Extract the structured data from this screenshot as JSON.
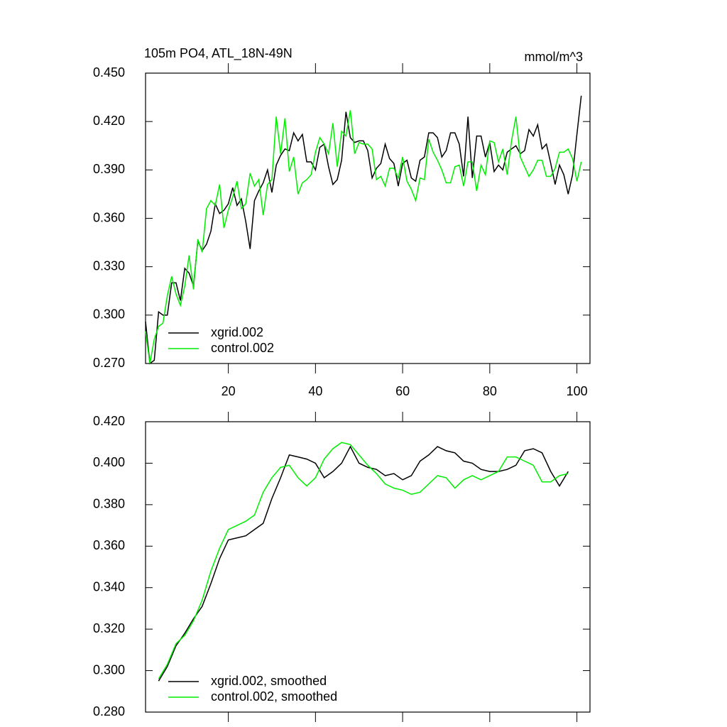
{
  "chart_data": [
    {
      "type": "line",
      "left_title": "105m PO4, ATL_18N-49N",
      "right_title": "mmol/m^3",
      "x": [
        1,
        2,
        3,
        4,
        5,
        6,
        7,
        8,
        9,
        10,
        11,
        12,
        13,
        14,
        15,
        16,
        17,
        18,
        19,
        20,
        21,
        22,
        23,
        24,
        25,
        26,
        27,
        28,
        29,
        30,
        31,
        32,
        33,
        34,
        35,
        36,
        37,
        38,
        39,
        40,
        41,
        42,
        43,
        44,
        45,
        46,
        47,
        48,
        49,
        50,
        51,
        52,
        53,
        54,
        55,
        56,
        57,
        58,
        59,
        60,
        61,
        62,
        63,
        64,
        65,
        66,
        67,
        68,
        69,
        70,
        71,
        72,
        73,
        74,
        75,
        76,
        77,
        78,
        79,
        80,
        81,
        82,
        83,
        84,
        85,
        86,
        87,
        88,
        89,
        90,
        91,
        92,
        93,
        94,
        95,
        96,
        97,
        98,
        99,
        100,
        101
      ],
      "series": [
        {
          "name": "xgrid.002",
          "color": "#000000",
          "values": [
            0.296,
            0.27,
            0.272,
            0.302,
            0.3,
            0.3,
            0.32,
            0.32,
            0.309,
            0.329,
            0.326,
            0.318,
            0.346,
            0.34,
            0.344,
            0.352,
            0.369,
            0.363,
            0.365,
            0.369,
            0.379,
            0.368,
            0.372,
            0.358,
            0.341,
            0.371,
            0.377,
            0.382,
            0.39,
            0.376,
            0.393,
            0.399,
            0.403,
            0.402,
            0.413,
            0.408,
            0.412,
            0.395,
            0.395,
            0.39,
            0.404,
            0.406,
            0.392,
            0.381,
            0.384,
            0.396,
            0.426,
            0.41,
            0.407,
            0.408,
            0.408,
            0.402,
            0.385,
            0.391,
            0.394,
            0.406,
            0.397,
            0.394,
            0.38,
            0.394,
            0.396,
            0.385,
            0.383,
            0.396,
            0.398,
            0.413,
            0.413,
            0.41,
            0.398,
            0.402,
            0.413,
            0.413,
            0.406,
            0.386,
            0.423,
            0.385,
            0.411,
            0.411,
            0.398,
            0.407,
            0.389,
            0.393,
            0.39,
            0.401,
            0.403,
            0.405,
            0.4,
            0.402,
            0.415,
            0.411,
            0.418,
            0.403,
            0.406,
            0.394,
            0.381,
            0.393,
            0.387,
            0.375,
            0.387,
            0.412,
            0.436
          ]
        },
        {
          "name": "control.002",
          "color": "#00ee00",
          "values": [
            0.29,
            0.27,
            0.285,
            0.293,
            0.295,
            0.312,
            0.324,
            0.313,
            0.306,
            0.318,
            0.337,
            0.316,
            0.347,
            0.339,
            0.366,
            0.371,
            0.368,
            0.381,
            0.354,
            0.365,
            0.373,
            0.383,
            0.366,
            0.369,
            0.388,
            0.38,
            0.384,
            0.362,
            0.381,
            0.384,
            0.423,
            0.4,
            0.422,
            0.389,
            0.398,
            0.375,
            0.382,
            0.384,
            0.387,
            0.401,
            0.41,
            0.406,
            0.4,
            0.419,
            0.392,
            0.414,
            0.411,
            0.427,
            0.4,
            0.407,
            0.406,
            0.406,
            0.403,
            0.384,
            0.386,
            0.38,
            0.391,
            0.391,
            0.385,
            0.398,
            0.383,
            0.378,
            0.371,
            0.385,
            0.384,
            0.409,
            0.401,
            0.396,
            0.39,
            0.382,
            0.382,
            0.392,
            0.393,
            0.38,
            0.395,
            0.395,
            0.377,
            0.393,
            0.387,
            0.408,
            0.407,
            0.395,
            0.403,
            0.387,
            0.408,
            0.423,
            0.398,
            0.392,
            0.386,
            0.39,
            0.396,
            0.396,
            0.386,
            0.386,
            0.391,
            0.401,
            0.401,
            0.403,
            0.397,
            0.383,
            0.395
          ]
        }
      ],
      "xlim": [
        1,
        103
      ],
      "xticks": [
        20,
        40,
        60,
        80,
        100
      ],
      "xtick_labels": true,
      "ylim": [
        0.27,
        0.45
      ],
      "yticks": [
        {
          "value": 0.27,
          "label": "0.270"
        },
        {
          "value": 0.3,
          "label": "0.300"
        },
        {
          "value": 0.33,
          "label": "0.330"
        },
        {
          "value": 0.36,
          "label": "0.360"
        },
        {
          "value": 0.39,
          "label": "0.390"
        },
        {
          "value": 0.42,
          "label": "0.420"
        },
        {
          "value": 0.45,
          "label": "0.450"
        }
      ],
      "legend": "lower left"
    },
    {
      "type": "line",
      "x": [
        4,
        6,
        8,
        10,
        12,
        14,
        16,
        18,
        20,
        22,
        24,
        26,
        28,
        30,
        32,
        34,
        36,
        38,
        40,
        42,
        44,
        46,
        48,
        50,
        52,
        54,
        56,
        58,
        60,
        62,
        64,
        66,
        68,
        70,
        72,
        74,
        76,
        78,
        80,
        82,
        84,
        86,
        88,
        90,
        92,
        94,
        96,
        98
      ],
      "series": [
        {
          "name": "xgrid.002, smoothed",
          "color": "#000000",
          "values": [
            0.295,
            0.302,
            0.312,
            0.318,
            0.325,
            0.331,
            0.342,
            0.354,
            0.363,
            0.364,
            0.365,
            0.368,
            0.371,
            0.383,
            0.393,
            0.404,
            0.403,
            0.402,
            0.4,
            0.393,
            0.396,
            0.4,
            0.408,
            0.4,
            0.398,
            0.397,
            0.394,
            0.395,
            0.392,
            0.394,
            0.401,
            0.404,
            0.408,
            0.406,
            0.405,
            0.401,
            0.4,
            0.397,
            0.396,
            0.396,
            0.397,
            0.399,
            0.406,
            0.407,
            0.405,
            0.396,
            0.389,
            0.396
          ]
        },
        {
          "name": "control.002, smoothed",
          "color": "#00ee00",
          "values": [
            0.296,
            0.303,
            0.313,
            0.317,
            0.324,
            0.334,
            0.348,
            0.359,
            0.368,
            0.37,
            0.372,
            0.375,
            0.386,
            0.393,
            0.398,
            0.399,
            0.393,
            0.389,
            0.393,
            0.402,
            0.407,
            0.41,
            0.409,
            0.404,
            0.399,
            0.395,
            0.39,
            0.388,
            0.387,
            0.385,
            0.386,
            0.39,
            0.394,
            0.393,
            0.388,
            0.392,
            0.394,
            0.392,
            0.394,
            0.396,
            0.403,
            0.403,
            0.401,
            0.399,
            0.391,
            0.391,
            0.394,
            0.395
          ]
        }
      ],
      "xlim": [
        1,
        103
      ],
      "xticks": [
        20,
        40,
        60,
        80,
        100
      ],
      "xtick_labels": false,
      "ylim": [
        0.28,
        0.42
      ],
      "yticks": [
        {
          "value": 0.28,
          "label": "0.280"
        },
        {
          "value": 0.3,
          "label": "0.300"
        },
        {
          "value": 0.32,
          "label": "0.320"
        },
        {
          "value": 0.34,
          "label": "0.340"
        },
        {
          "value": 0.36,
          "label": "0.360"
        },
        {
          "value": 0.38,
          "label": "0.380"
        },
        {
          "value": 0.4,
          "label": "0.400"
        },
        {
          "value": 0.42,
          "label": "0.420"
        }
      ],
      "legend": "lower left"
    }
  ]
}
